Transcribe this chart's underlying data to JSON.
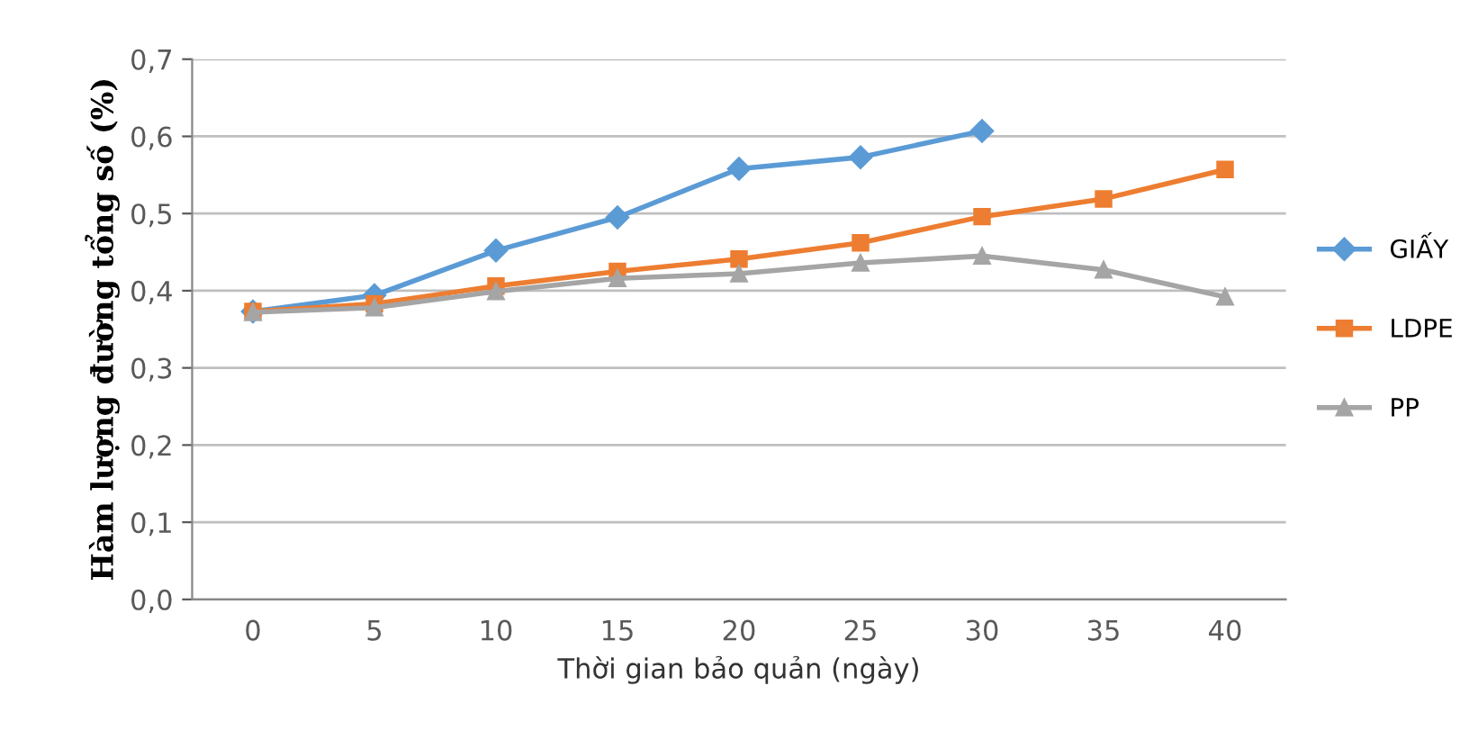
{
  "chart_data": {
    "type": "line",
    "xlabel": "Thời gian bảo quản (ngày)",
    "ylabel": "Hàm lượng đường tổng số (%)",
    "categories": [
      "0",
      "5",
      "10",
      "15",
      "20",
      "25",
      "30",
      "35",
      "40"
    ],
    "series": [
      {
        "name": "GIẤY",
        "color": "#5b9bd5",
        "marker": "diamond",
        "values": [
          0.373,
          0.394,
          0.452,
          0.495,
          0.558,
          0.573,
          0.607,
          null,
          null
        ]
      },
      {
        "name": "LDPE",
        "color": "#ed7d31",
        "marker": "square",
        "values": [
          0.373,
          0.383,
          0.406,
          0.425,
          0.441,
          0.462,
          0.496,
          0.519,
          0.557
        ]
      },
      {
        "name": "PP",
        "color": "#a5a5a5",
        "marker": "triangle",
        "values": [
          0.372,
          0.378,
          0.399,
          0.416,
          0.422,
          0.436,
          0.445,
          0.427,
          0.392
        ]
      }
    ],
    "ylim": [
      0,
      0.7
    ],
    "yticks": [
      {
        "value": 0,
        "label": "0,0"
      },
      {
        "value": 0.1,
        "label": "0,1"
      },
      {
        "value": 0.2,
        "label": "0,2"
      },
      {
        "value": 0.3,
        "label": "0,3"
      },
      {
        "value": 0.4,
        "label": "0,4"
      },
      {
        "value": 0.5,
        "label": "0,5"
      },
      {
        "value": 0.6,
        "label": "0,6"
      },
      {
        "value": 0.7,
        "label": "0,7"
      }
    ],
    "grid": "y",
    "legend": "right",
    "line_style": "solid"
  }
}
